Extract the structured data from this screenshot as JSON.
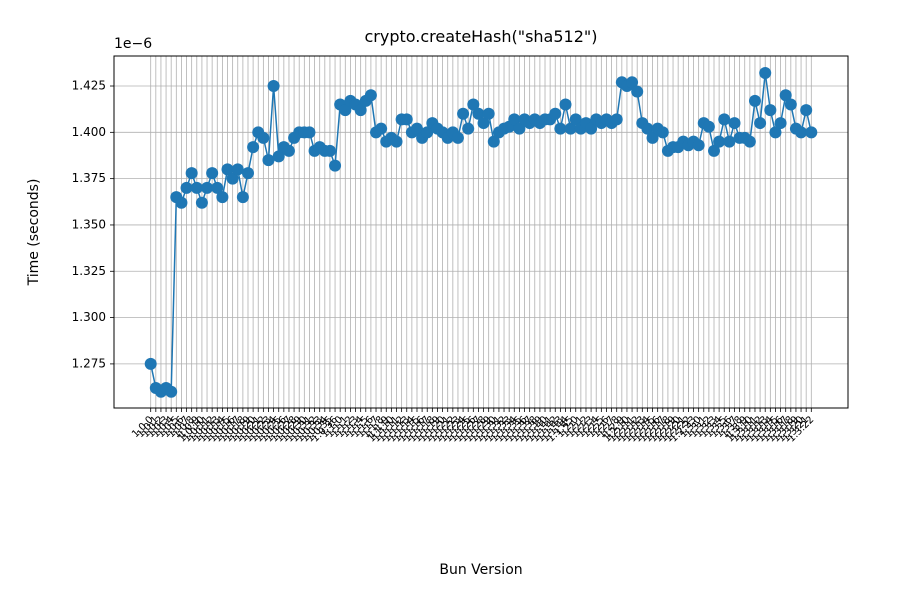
{
  "chart_data": {
    "type": "line",
    "title": "crypto.createHash(\"sha512\")",
    "x_label": "Bun Version",
    "y_label": "Time (seconds)",
    "y_offset_label": "1e−6",
    "color": "#1f77b4",
    "grid": true,
    "categories": [
      "1.0.0",
      "1.0.1",
      "1.0.2",
      "1.0.3",
      "1.0.4",
      "1.0.5",
      "1.0.6",
      "1.0.7",
      "1.0.8",
      "1.0.9",
      "1.0.10",
      "1.0.11",
      "1.0.12",
      "1.0.13",
      "1.0.14",
      "1.0.15",
      "1.0.16",
      "1.0.17",
      "1.0.18",
      "1.0.19",
      "1.0.20",
      "1.0.21",
      "1.0.22",
      "1.0.23",
      "1.0.24",
      "1.0.25",
      "1.0.26",
      "1.0.27",
      "1.0.28",
      "1.0.29",
      "1.0.30",
      "1.0.31",
      "1.0.32",
      "1.0.33",
      "1.0.34",
      "1.0.35",
      "1.0.36",
      "1.1.0",
      "1.1.1",
      "1.1.2",
      "1.1.3",
      "1.1.4",
      "1.1.5",
      "1.1.6",
      "1.1.7",
      "1.1.8",
      "1.1.9",
      "1.1.10",
      "1.1.11",
      "1.1.12",
      "1.1.13",
      "1.1.14",
      "1.1.15",
      "1.1.16",
      "1.1.17",
      "1.1.18",
      "1.1.19",
      "1.1.20",
      "1.1.21",
      "1.1.22",
      "1.1.23",
      "1.1.24",
      "1.1.25",
      "1.1.26",
      "1.1.27",
      "1.1.28",
      "1.1.29",
      "1.1.30",
      "1.1.31",
      "1.1.32",
      "1.1.33",
      "1.1.34",
      "1.1.35",
      "1.1.36",
      "1.1.37",
      "1.1.38",
      "1.1.39",
      "1.1.40",
      "1.1.41",
      "1.1.42",
      "1.1.43",
      "1.1.44",
      "1.1.45",
      "1.2.0",
      "1.2.1",
      "1.2.2",
      "1.2.3",
      "1.2.4",
      "1.2.5",
      "1.2.6",
      "1.2.7",
      "1.2.8",
      "1.2.9",
      "1.2.10",
      "1.2.11",
      "1.2.12",
      "1.2.13",
      "1.2.14",
      "1.2.15",
      "1.2.16",
      "1.2.17",
      "1.2.18",
      "1.2.19",
      "1.2.20",
      "1.2.21",
      "1.2.22",
      "1.2.23",
      "1.3.0",
      "1.3.1",
      "1.3.2",
      "1.3.3",
      "1.3.4",
      "1.3.5",
      "1.3.6",
      "1.3.7",
      "1.3.8",
      "1.3.9",
      "1.3.10",
      "1.3.11",
      "1.3.12",
      "1.3.13",
      "1.3.14",
      "1.3.15",
      "1.3.16",
      "1.3.17",
      "1.3.18",
      "1.3.19",
      "1.3.20",
      "1.3.21",
      "1.3.22"
    ],
    "values": [
      1.275,
      1.262,
      1.26,
      1.262,
      1.26,
      1.365,
      1.362,
      1.37,
      1.378,
      1.37,
      1.362,
      1.37,
      1.378,
      1.37,
      1.365,
      1.38,
      1.375,
      1.38,
      1.365,
      1.378,
      1.392,
      1.4,
      1.397,
      1.385,
      1.425,
      1.387,
      1.392,
      1.39,
      1.397,
      1.4,
      1.4,
      1.4,
      1.39,
      1.392,
      1.39,
      1.39,
      1.382,
      1.415,
      1.412,
      1.417,
      1.415,
      1.412,
      1.417,
      1.42,
      1.4,
      1.402,
      1.395,
      1.397,
      1.395,
      1.407,
      1.407,
      1.4,
      1.402,
      1.397,
      1.4,
      1.405,
      1.402,
      1.4,
      1.397,
      1.4,
      1.397,
      1.41,
      1.402,
      1.415,
      1.41,
      1.405,
      1.41,
      1.395,
      1.4,
      1.402,
      1.403,
      1.407,
      1.402,
      1.407,
      1.405,
      1.407,
      1.405,
      1.407,
      1.407,
      1.41,
      1.402,
      1.415,
      1.402,
      1.407,
      1.402,
      1.405,
      1.402,
      1.407,
      1.405,
      1.407,
      1.405,
      1.407,
      1.427,
      1.425,
      1.427,
      1.422,
      1.405,
      1.402,
      1.397,
      1.402,
      1.4,
      1.39,
      1.392,
      1.392,
      1.395,
      1.393,
      1.395,
      1.393,
      1.405,
      1.403,
      1.39,
      1.395,
      1.407,
      1.395,
      1.405,
      1.397,
      1.397,
      1.395,
      1.417,
      1.405,
      1.432,
      1.412,
      1.4,
      1.405,
      1.42,
      1.415,
      1.402,
      1.4,
      1.412,
      1.4
    ],
    "ylim": [
      1.2512,
      1.4412
    ],
    "yticks": [
      {
        "value": 1.275,
        "label": "1.275"
      },
      {
        "value": 1.3,
        "label": "1.300"
      },
      {
        "value": 1.325,
        "label": "1.325"
      },
      {
        "value": 1.35,
        "label": "1.350"
      },
      {
        "value": 1.375,
        "label": "1.375"
      },
      {
        "value": 1.4,
        "label": "1.400"
      },
      {
        "value": 1.425,
        "label": "1.425"
      }
    ]
  }
}
